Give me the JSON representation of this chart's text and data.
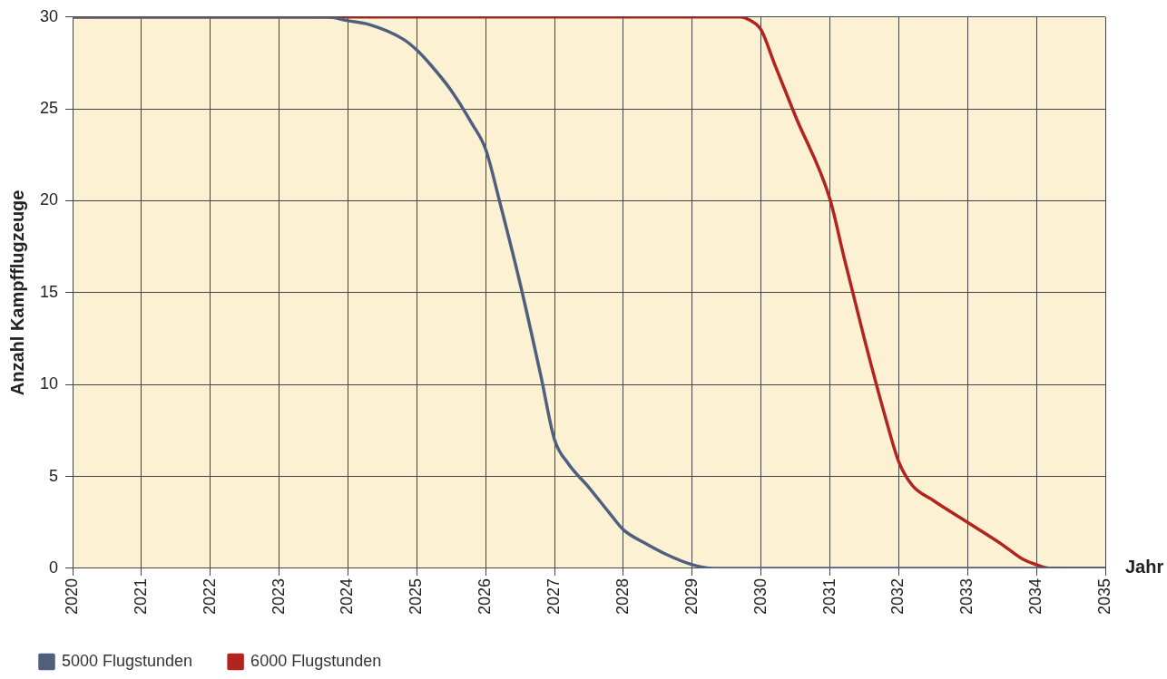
{
  "chart_data": {
    "type": "line",
    "xlabel": "Jahr",
    "ylabel": "Anzahl Kampfflugzeuge",
    "xlim": [
      2020,
      2035
    ],
    "xticks": [
      2020,
      2021,
      2022,
      2023,
      2024,
      2025,
      2026,
      2027,
      2028,
      2029,
      2030,
      2031,
      2032,
      2033,
      2034,
      2035
    ],
    "ylim": [
      0,
      30
    ],
    "yticks": [
      0,
      5,
      10,
      15,
      20,
      25,
      30
    ],
    "grid": true,
    "legend": "bottom left",
    "marker": "none",
    "line_style": "solid",
    "series": [
      {
        "name": "5000 Flugstunden",
        "color": "#4f5f7e",
        "x": [
          2020,
          2023.7,
          2024,
          2024.3,
          2024.8,
          2025,
          2025.2,
          2025.5,
          2025.8,
          2026,
          2026.2,
          2026.5,
          2026.8,
          2027,
          2027.2,
          2027.5,
          2027.8,
          2028,
          2028.3,
          2028.6,
          2029,
          2029.3,
          2035
        ],
        "values": [
          30,
          30,
          29.8,
          29.6,
          28.8,
          28.2,
          27.4,
          26,
          24.2,
          22.8,
          20,
          15.5,
          10.5,
          7,
          5.7,
          4.4,
          3,
          2.1,
          1.4,
          0.8,
          0.2,
          0,
          0
        ]
      },
      {
        "name": "6000 Flugstunden",
        "color": "#b3231f",
        "x": [
          2020,
          2029.7,
          2029.85,
          2030,
          2030.2,
          2030.5,
          2031,
          2031.2,
          2031.5,
          2031.8,
          2032,
          2032.2,
          2032.5,
          2033,
          2033.5,
          2033.8,
          2034,
          2034.2,
          2035
        ],
        "values": [
          30,
          30,
          29.8,
          29.3,
          27.4,
          24.6,
          20.1,
          17,
          12.5,
          8.3,
          5.8,
          4.5,
          3.7,
          2.5,
          1.3,
          0.5,
          0.2,
          0,
          0
        ]
      }
    ]
  }
}
